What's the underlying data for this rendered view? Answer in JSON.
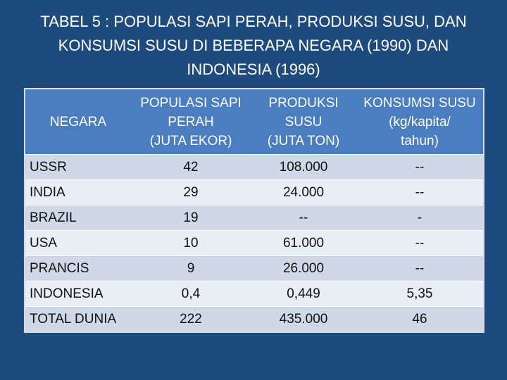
{
  "title": {
    "line1": "TABEL 5 : POPULASI SAPI PERAH, PRODUKSI SUSU, DAN",
    "line2": "KONSUMSI SUSU DI BEBERAPA NEGARA (1990) DAN",
    "line3": "INDONESIA (1996)"
  },
  "table": {
    "headers": [
      {
        "lines": [
          "NEGARA"
        ]
      },
      {
        "lines": [
          "POPULASI SAPI",
          "PERAH",
          "(JUTA EKOR)"
        ]
      },
      {
        "lines": [
          "PRODUKSI",
          "SUSU",
          "(JUTA TON)"
        ]
      },
      {
        "lines": [
          "KONSUMSI SUSU",
          "(kg/kapita/",
          "tahun)"
        ]
      }
    ],
    "rows": [
      {
        "negara": "USSR",
        "populasi": "42",
        "produksi": "108.000",
        "konsumsi": "--"
      },
      {
        "negara": "INDIA",
        "populasi": "29",
        "produksi": "24.000",
        "konsumsi": "--"
      },
      {
        "negara": "BRAZIL",
        "populasi": "19",
        "produksi": "--",
        "konsumsi": "-"
      },
      {
        "negara": "USA",
        "populasi": "10",
        "produksi": "61.000",
        "konsumsi": "--"
      },
      {
        "negara": "PRANCIS",
        "populasi": "9",
        "produksi": "26.000",
        "konsumsi": "--"
      },
      {
        "negara": "INDONESIA",
        "populasi": "0,4",
        "produksi": "0,449",
        "konsumsi": "5,35"
      },
      {
        "negara": "TOTAL DUNIA",
        "populasi": "222",
        "produksi": "435.000",
        "konsumsi": "46"
      }
    ]
  },
  "colors": {
    "background": "#1e4b7e",
    "header": "#4a7ec0",
    "row_odd": "#d0d8e8",
    "row_even": "#e9edf4"
  }
}
